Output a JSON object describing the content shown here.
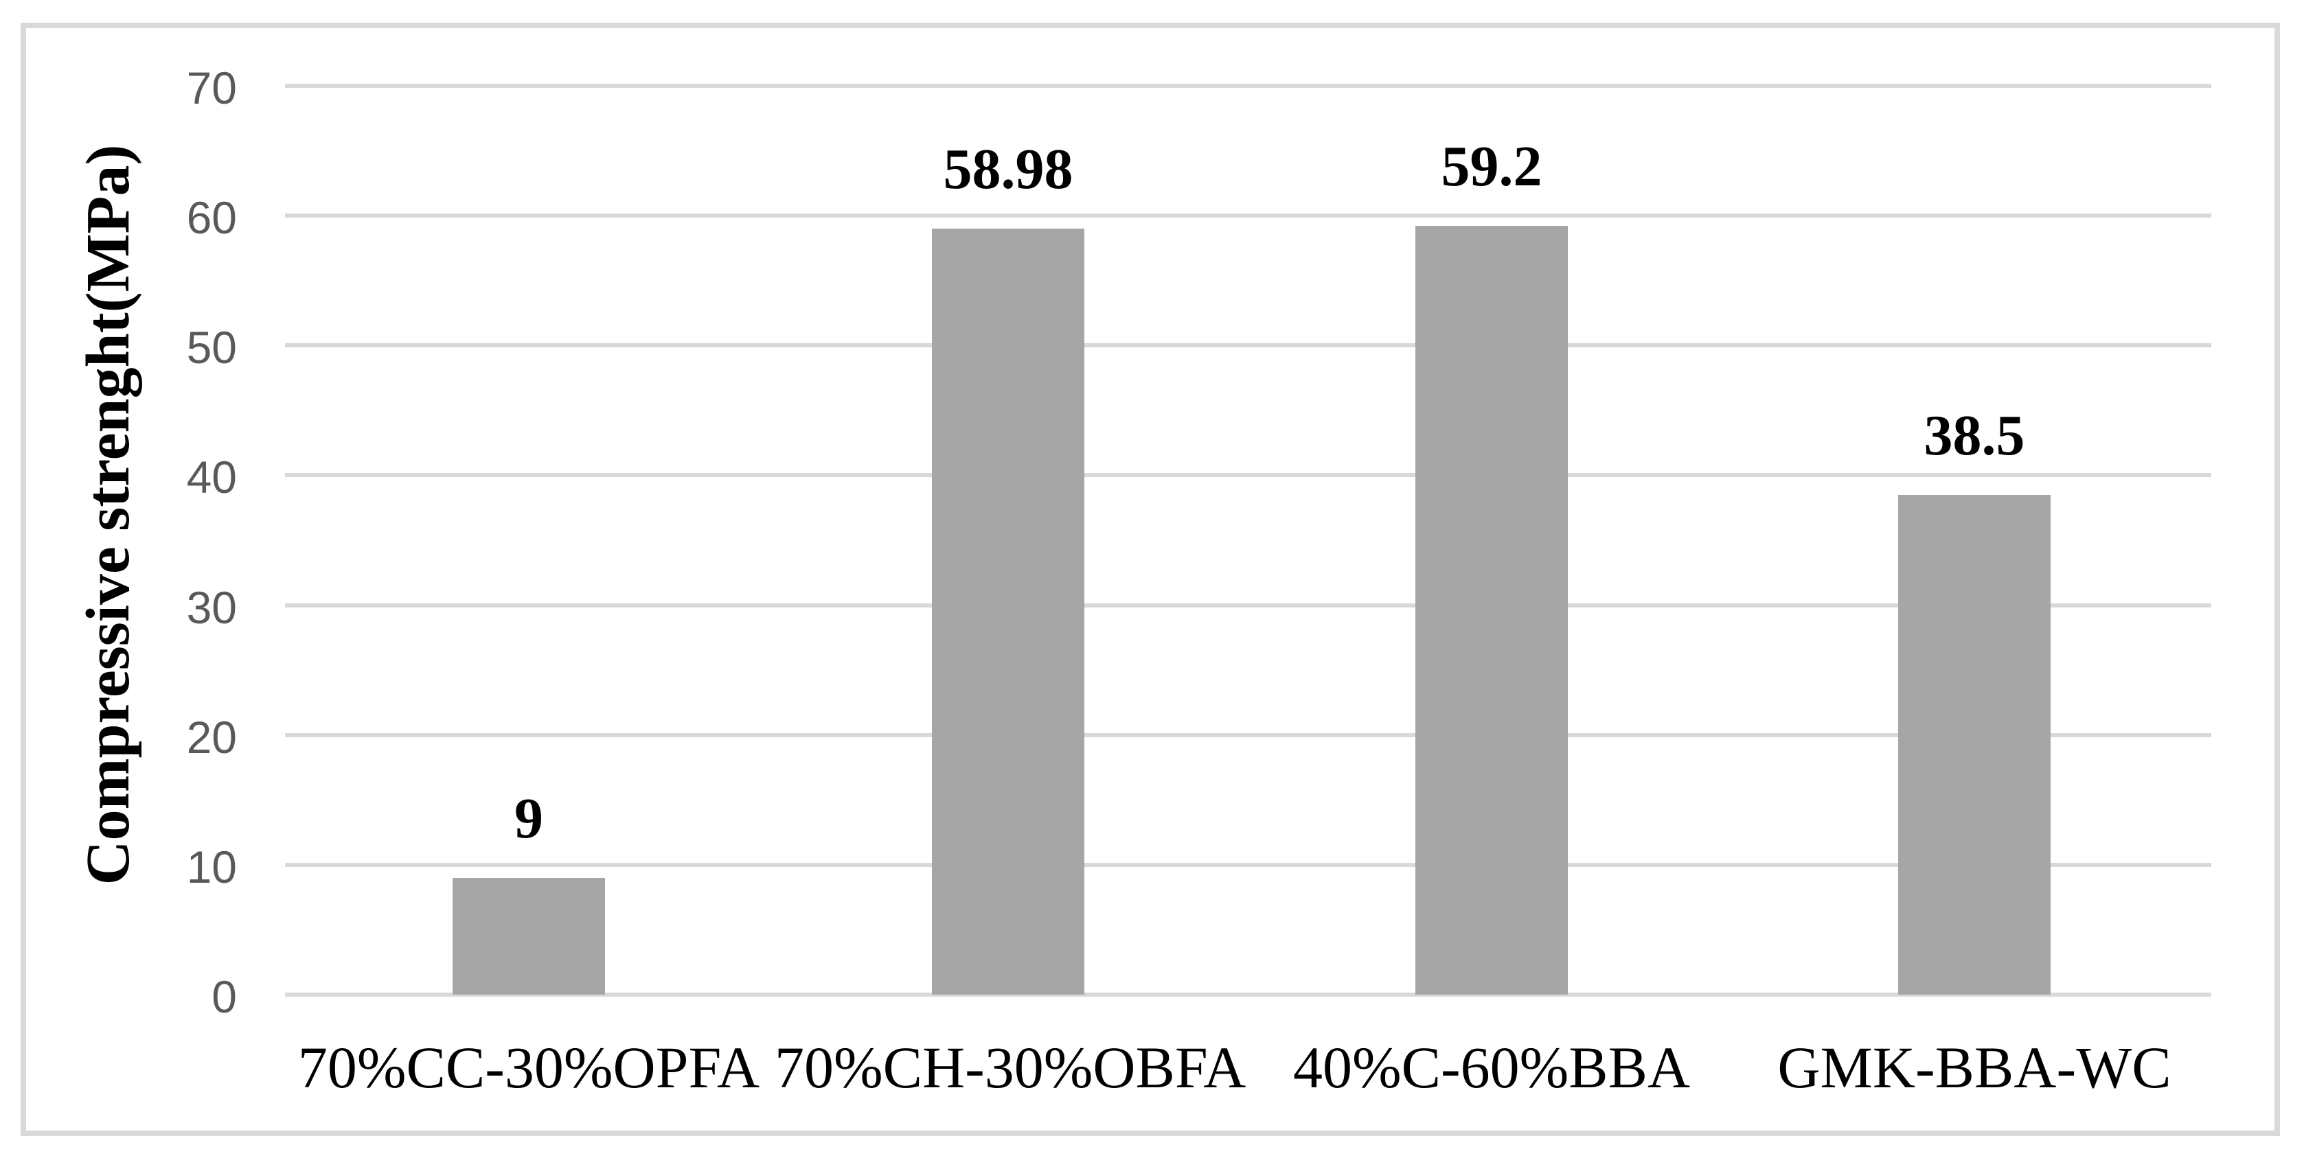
{
  "chart_data": {
    "type": "bar",
    "categories": [
      "70%CC-30%OPFA",
      "70%CH-30%OBFA",
      "40%C-60%BBA",
      "GMK-BBA-WC"
    ],
    "values": [
      9,
      58.98,
      59.2,
      38.5
    ],
    "value_labels": [
      "9",
      "58.98",
      "59.2",
      "38.5"
    ],
    "title": "",
    "xlabel": "",
    "ylabel": "Compressive strenght(MPa)",
    "ylim": [
      0,
      70
    ],
    "yticks": [
      0,
      10,
      20,
      30,
      40,
      50,
      60,
      70
    ],
    "grid": true,
    "legend": "none",
    "bar_color": "#a6a6a6",
    "gridline_color": "#d9d9d9",
    "axis_line_color": "#d9d9d9",
    "tick_label_color": "#595959",
    "frame_color": "#d9d9d9",
    "background_color": "#ffffff"
  }
}
